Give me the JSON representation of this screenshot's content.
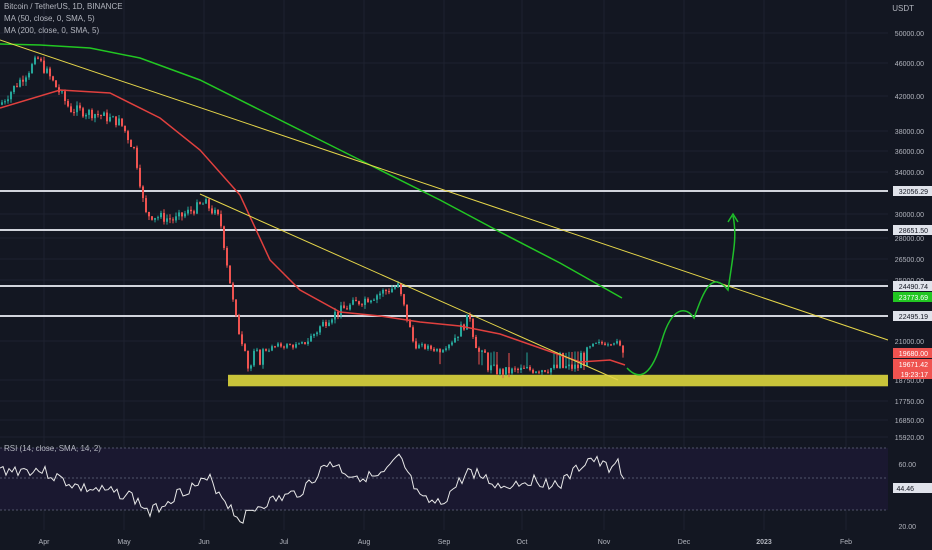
{
  "header": {
    "symbol": "Bitcoin / TetherUS, 1D, BINANCE",
    "ma50": "MA (50, close, 0, SMA, 5)",
    "ma200": "MA (200, close, 0, SMA, 5)",
    "currency": "USDT"
  },
  "rsi_panel": {
    "legend": "RSI (14, close, SMA, 14, 2)",
    "current": "44.46",
    "levels": [
      "60.00",
      "20.00"
    ]
  },
  "colors": {
    "background": "#131722",
    "up": "#26a69a",
    "down": "#ef5350",
    "ma50": "#e0403e",
    "ma200": "#22c722",
    "trendline": "#e6d64a",
    "support": "#c9c43a",
    "forecast": "#1fbf2a",
    "level_line": "#d1d4dc",
    "rsi": "#e8e8e8"
  },
  "chart_data": {
    "type": "candlestick",
    "symbol": "BTCUSDT",
    "timeframe": "1D",
    "x_ticks": [
      "Apr",
      "May",
      "Jun",
      "Jul",
      "Aug",
      "Sep",
      "Oct",
      "Nov",
      "Dec",
      "2023",
      "Feb"
    ],
    "y_ticks": [
      "50000.00",
      "46000.00",
      "42000.00",
      "38000.00",
      "36000.00",
      "34000.00",
      "30000.00",
      "28000.00",
      "26500.00",
      "25000.00",
      "21000.00",
      "18750.00",
      "17750.00",
      "16850.00",
      "15920.00"
    ],
    "horizontal_levels": [
      "32056.29",
      "28651.50",
      "24490.74",
      "22495.19"
    ],
    "price_tags": [
      {
        "value": "23773.69",
        "color": "#22c722",
        "label": "MA200"
      },
      {
        "value": "19680.00",
        "color": "#ef5350",
        "label": "close"
      },
      {
        "value": "19671.42",
        "color": "#ef5350",
        "label": "MA50"
      },
      {
        "value": "19:23:17",
        "color": "#ef5350",
        "label": "countdown"
      }
    ],
    "support_zone": [
      18450,
      19050
    ],
    "price_path": [
      [
        "Apr",
        41000
      ],
      [
        "mid-Apr",
        46000
      ],
      [
        "late-Apr",
        40500
      ],
      [
        "May",
        38500
      ],
      [
        "mid-May",
        30000
      ],
      [
        "late-May",
        29500
      ],
      [
        "Jun",
        31000
      ],
      [
        "mid-Jun",
        22500
      ],
      [
        "late-Jun",
        20000
      ],
      [
        "Jul",
        19500
      ],
      [
        "late-Jul",
        22500
      ],
      [
        "Aug",
        23500
      ],
      [
        "mid-Aug",
        24500
      ],
      [
        "Sep",
        20000
      ],
      [
        "mid-Sep",
        22500
      ],
      [
        "Oct",
        19400
      ],
      [
        "late-Oct",
        20600
      ],
      [
        "Nov",
        21000
      ],
      [
        "current",
        19680
      ]
    ],
    "rsi_range": [
      20,
      70
    ],
    "ma50_label": "MA (50, close, 0, SMA, 5)",
    "ma200_label": "MA (200, close, 0, SMA, 5)"
  }
}
